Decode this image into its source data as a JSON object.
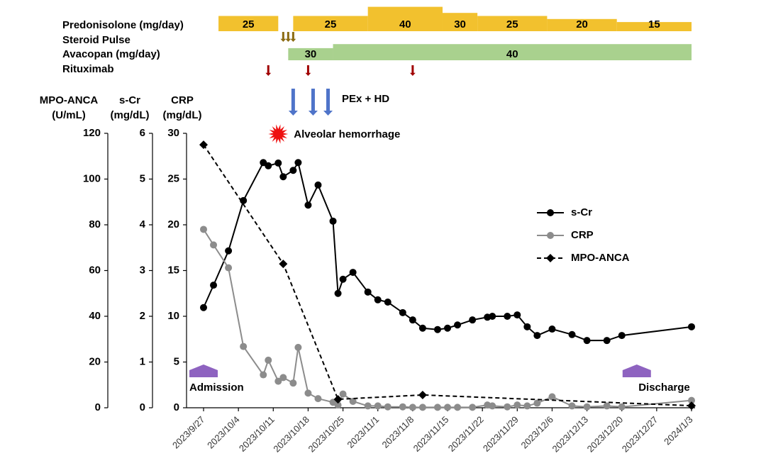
{
  "chart_data": {
    "type": "line",
    "xlim": [
      "2023/9/27",
      "2024/1/3"
    ],
    "xticks": [
      "2023/9/27",
      "2023/10/4",
      "2023/10/11",
      "2023/10/18",
      "2023/10/25",
      "2023/11/1",
      "2023/11/8",
      "2023/11/15",
      "2023/11/22",
      "2023/11/29",
      "2023/12/6",
      "2023/12/13",
      "2023/12/20",
      "2023/12/27",
      "2024/1/3"
    ],
    "y_axes": [
      {
        "id": "mpo",
        "title": "MPO-ANCA",
        "unit": "(U/mL)",
        "lim": [
          0,
          120
        ],
        "ticks": [
          0,
          20,
          40,
          60,
          80,
          100,
          120
        ]
      },
      {
        "id": "scr",
        "title": "s-Cr",
        "unit": "(mg/dL)",
        "lim": [
          0,
          6
        ],
        "ticks": [
          0,
          1,
          2,
          3,
          4,
          5,
          6
        ]
      },
      {
        "id": "crp",
        "title": "CRP",
        "unit": "(mg/dL)",
        "lim": [
          0,
          30
        ],
        "ticks": [
          0,
          5,
          10,
          15,
          20,
          25,
          30
        ]
      }
    ],
    "series": [
      {
        "name": "s-Cr",
        "axis": "scr",
        "color": "#000000",
        "marker": "circle",
        "dashed": false,
        "x": [
          "2023/9/27",
          "2023/9/29",
          "2023/10/2",
          "2023/10/5",
          "2023/10/9",
          "2023/10/10",
          "2023/10/12",
          "2023/10/13",
          "2023/10/15",
          "2023/10/16",
          "2023/10/18",
          "2023/10/20",
          "2023/10/23",
          "2023/10/24",
          "2023/10/25",
          "2023/10/27",
          "2023/10/30",
          "2023/11/1",
          "2023/11/3",
          "2023/11/6",
          "2023/11/8",
          "2023/11/10",
          "2023/11/13",
          "2023/11/15",
          "2023/11/17",
          "2023/11/20",
          "2023/11/23",
          "2023/11/24",
          "2023/11/27",
          "2023/11/29",
          "2023/12/1",
          "2023/12/3",
          "2023/12/6",
          "2023/12/10",
          "2023/12/13",
          "2023/12/17",
          "2023/12/20",
          "2024/1/3"
        ],
        "values": [
          2.19,
          2.68,
          3.43,
          4.53,
          5.36,
          5.29,
          5.35,
          5.05,
          5.19,
          5.36,
          4.43,
          4.87,
          4.08,
          2.5,
          2.81,
          2.96,
          2.53,
          2.36,
          2.31,
          2.08,
          1.92,
          1.74,
          1.71,
          1.74,
          1.81,
          1.92,
          1.98,
          2.0,
          2.0,
          2.03,
          1.77,
          1.58,
          1.72,
          1.6,
          1.47,
          1.47,
          1.58,
          1.77
        ]
      },
      {
        "name": "CRP",
        "axis": "crp",
        "color": "#8c8c8c",
        "marker": "circle",
        "dashed": false,
        "x": [
          "2023/9/27",
          "2023/9/29",
          "2023/10/2",
          "2023/10/5",
          "2023/10/9",
          "2023/10/10",
          "2023/10/12",
          "2023/10/13",
          "2023/10/15",
          "2023/10/16",
          "2023/10/18",
          "2023/10/20",
          "2023/10/23",
          "2023/10/24",
          "2023/10/25",
          "2023/10/27",
          "2023/10/30",
          "2023/11/1",
          "2023/11/3",
          "2023/11/6",
          "2023/11/8",
          "2023/11/10",
          "2023/11/13",
          "2023/11/15",
          "2023/11/17",
          "2023/11/20",
          "2023/11/23",
          "2023/11/24",
          "2023/11/27",
          "2023/11/29",
          "2023/12/1",
          "2023/12/3",
          "2023/12/6",
          "2023/12/10",
          "2023/12/13",
          "2023/12/17",
          "2023/12/20",
          "2024/1/3"
        ],
        "values": [
          19.5,
          17.8,
          15.3,
          6.7,
          3.6,
          5.2,
          2.9,
          3.3,
          2.7,
          6.6,
          1.6,
          1.0,
          0.6,
          0.3,
          1.5,
          0.7,
          0.2,
          0.2,
          0.1,
          0.1,
          0.05,
          0.05,
          0.05,
          0.05,
          0.05,
          0.05,
          0.3,
          0.2,
          0.1,
          0.3,
          0.2,
          0.5,
          1.2,
          0.2,
          0.1,
          0.2,
          0.1,
          0.8
        ]
      },
      {
        "name": "MPO-ANCA",
        "axis": "mpo",
        "color": "#000000",
        "marker": "diamond",
        "dashed": true,
        "x": [
          "2023/9/27",
          "2023/10/13",
          "2023/10/24",
          "2023/11/10",
          "2024/1/3"
        ],
        "values": [
          115,
          62.9,
          3.7,
          5.6,
          0.9
        ]
      }
    ],
    "legend": "right",
    "prednisolone": {
      "label": "Predonisolone (mg/day)",
      "color": "#f2c12e",
      "start": [
        "2023/9/30",
        "2023/10/15",
        "2023/10/30",
        "2023/11/14",
        "2023/11/21",
        "2023/12/5",
        "2023/12/19"
      ],
      "end": [
        "2023/10/12",
        "2023/10/30",
        "2023/11/14",
        "2023/11/21",
        "2023/12/5",
        "2023/12/19",
        "2024/1/3"
      ],
      "values": [
        25,
        25,
        40,
        30,
        25,
        20,
        15
      ]
    },
    "steroid_pulse": {
      "label": "Steroid Pulse",
      "color": "#8b6b12",
      "x": [
        "2023/10/13",
        "2023/10/14",
        "2023/10/15"
      ]
    },
    "avacopan": {
      "label": "Avacopan (mg/day)",
      "color": "#a9d18e",
      "start": [
        "2023/10/14",
        "2023/10/23"
      ],
      "end": [
        "2023/10/23",
        "2024/1/3"
      ],
      "values": [
        30,
        40
      ]
    },
    "rituximab": {
      "label": "Rituximab",
      "color": "#a00000",
      "x": [
        "2023/10/10",
        "2023/10/18",
        "2023/11/8"
      ]
    },
    "pex_hd": {
      "label": "PEx + HD",
      "color": "#4f74c9",
      "x": [
        "2023/10/15",
        "2023/10/19",
        "2023/10/22"
      ]
    },
    "alveolar_hemorrhage": {
      "label": "Alveolar hemorrhage",
      "color": "#ee1111",
      "x": "2023/10/12"
    },
    "admission": {
      "label": "Admission",
      "color": "#8e63c0",
      "x": "2023/9/27"
    },
    "discharge": {
      "label": "Discharge",
      "color": "#8e63c0",
      "x": "2023/12/23"
    }
  }
}
